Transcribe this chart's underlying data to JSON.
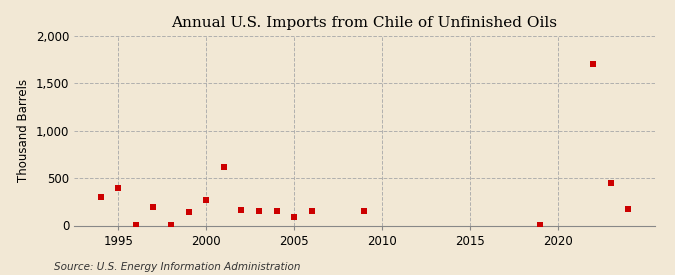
{
  "title": "Annual U.S. Imports from Chile of Unfinished Oils",
  "ylabel": "Thousand Barrels",
  "source": "Source: U.S. Energy Information Administration",
  "background_color": "#f2e8d5",
  "plot_background_color": "#f2e8d5",
  "marker_color": "#cc0000",
  "years": [
    1994,
    1995,
    1996,
    1997,
    1998,
    1999,
    2000,
    2001,
    2002,
    2003,
    2004,
    2005,
    2006,
    2009,
    2019,
    2022,
    2023,
    2024
  ],
  "values": [
    305,
    390,
    10,
    190,
    10,
    145,
    265,
    620,
    160,
    150,
    155,
    90,
    155,
    150,
    10,
    1700,
    445,
    170
  ],
  "xlim": [
    1992.5,
    2025.5
  ],
  "ylim": [
    0,
    2000
  ],
  "xticks": [
    1995,
    2000,
    2005,
    2010,
    2015,
    2020
  ],
  "yticks": [
    0,
    500,
    1000,
    1500,
    2000
  ],
  "ytick_labels": [
    "0",
    "500",
    "1,000",
    "1,500",
    "2,000"
  ],
  "grid_color": "#aaaaaa",
  "title_fontsize": 11,
  "axis_fontsize": 8.5,
  "source_fontsize": 7.5,
  "ylabel_fontsize": 8.5
}
